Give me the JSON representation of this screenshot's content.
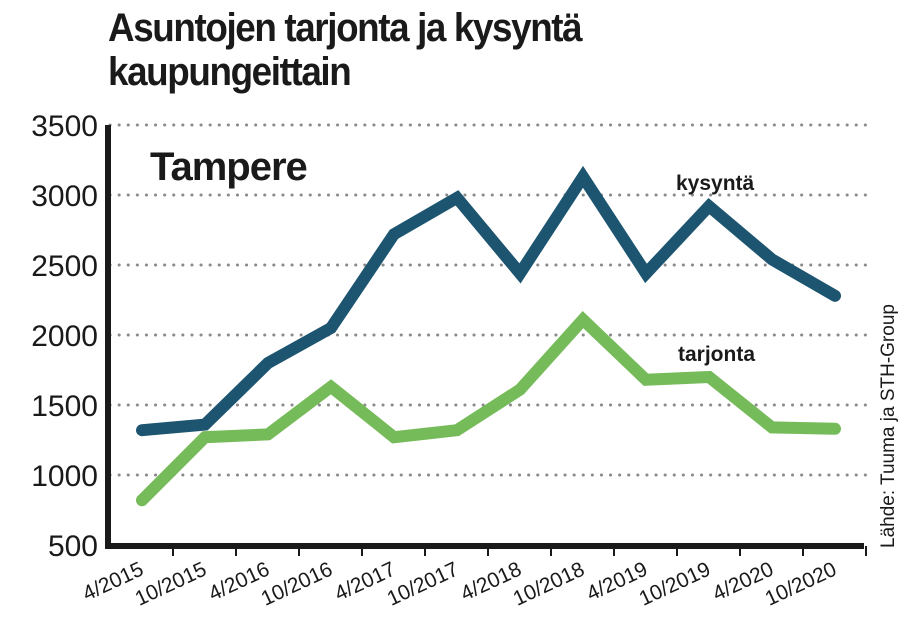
{
  "title_line1": "Asuntojen tarjonta ja kysyntä",
  "title_line2": "kaupungeittain",
  "chart_data": {
    "type": "line",
    "subtitle": "Tampere",
    "source": "Lähde: Tuuma ja STH-Group",
    "categories": [
      "4/2015",
      "10/2015",
      "4/2016",
      "10/2016",
      "4/2017",
      "10/2017",
      "4/2018",
      "10/2018",
      "4/2019",
      "10/2019",
      "4/2020",
      "10/2020"
    ],
    "ylim": [
      500,
      3500
    ],
    "yticks": [
      3500,
      3000,
      2500,
      2000,
      1500,
      1000,
      500
    ],
    "grid": true,
    "series": [
      {
        "name": "kysyntä",
        "color": "#1d5570",
        "values": [
          1320,
          1360,
          1800,
          2050,
          2720,
          2980,
          2440,
          3130,
          2440,
          2920,
          2540,
          2280
        ]
      },
      {
        "name": "tarjonta",
        "color": "#76bb59",
        "values": [
          820,
          1270,
          1290,
          1630,
          1270,
          1320,
          1610,
          2110,
          1680,
          1700,
          1340,
          1330
        ]
      }
    ]
  }
}
